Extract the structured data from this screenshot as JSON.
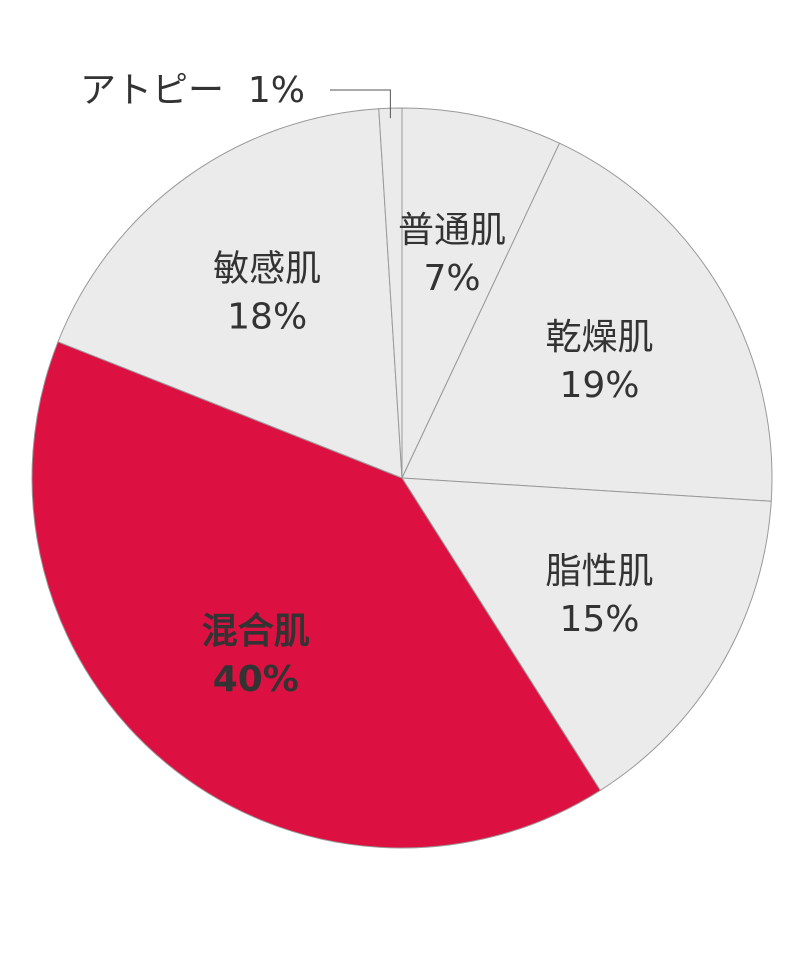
{
  "chart_data": {
    "type": "pie",
    "categories": [
      "普通肌",
      "乾燥肌",
      "脂性肌",
      "混合肌",
      "敏感肌",
      "アトピー"
    ],
    "values": [
      7,
      19,
      15,
      40,
      18,
      1
    ],
    "value_labels": [
      "7%",
      "19%",
      "15%",
      "40%",
      "18%",
      "1%"
    ],
    "colors": [
      "#ebebeb",
      "#ebebeb",
      "#ebebeb",
      "#dc1141",
      "#ebebeb",
      "#ebebeb"
    ]
  }
}
